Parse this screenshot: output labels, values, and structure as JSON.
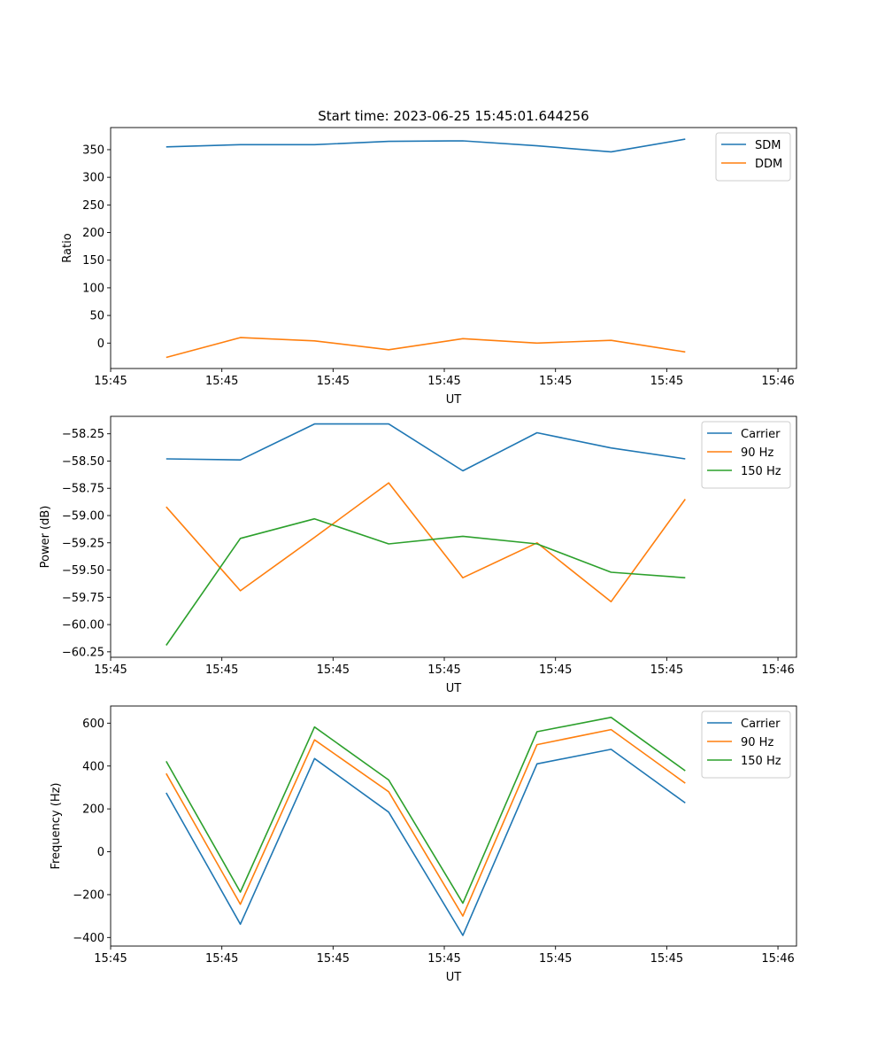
{
  "figure": {
    "title": "Start time: 2023-06-25 15:45:01.644256"
  },
  "chart_data": [
    {
      "type": "line",
      "title": "Start time: 2023-06-25 15:45:01.644256",
      "xlabel": "UT",
      "ylabel": "Ratio",
      "x": [
        0,
        1,
        2,
        3,
        4,
        5,
        6,
        7
      ],
      "xlim": [
        -0.75,
        8.5
      ],
      "x_ticks": [
        -0.75,
        0.75,
        2.25,
        3.75,
        5.25,
        6.75,
        8.25
      ],
      "x_tick_labels": [
        "15:45",
        "15:45",
        "15:45",
        "15:45",
        "15:45",
        "15:45",
        "15:46"
      ],
      "ylim": [
        -46,
        390
      ],
      "y_ticks": [
        0,
        50,
        100,
        150,
        200,
        250,
        300,
        350
      ],
      "y_tick_labels": [
        "0",
        "50",
        "100",
        "150",
        "200",
        "250",
        "300",
        "350"
      ],
      "grid": false,
      "legend": "upper right",
      "series": [
        {
          "name": "SDM",
          "color": "#1f77b4",
          "values": [
            355,
            359,
            359,
            365,
            366,
            357,
            346,
            369
          ]
        },
        {
          "name": "DDM",
          "color": "#ff7f0e",
          "values": [
            -26,
            10,
            4,
            -12,
            8,
            0,
            5,
            -16
          ]
        }
      ]
    },
    {
      "type": "line",
      "xlabel": "UT",
      "ylabel": "Power (dB)",
      "x": [
        0,
        1,
        2,
        3,
        4,
        5,
        6,
        7
      ],
      "xlim": [
        -0.75,
        8.5
      ],
      "x_ticks": [
        -0.75,
        0.75,
        2.25,
        3.75,
        5.25,
        6.75,
        8.25
      ],
      "x_tick_labels": [
        "15:45",
        "15:45",
        "15:45",
        "15:45",
        "15:45",
        "15:45",
        "15:46"
      ],
      "ylim": [
        -60.3,
        -58.09
      ],
      "y_ticks": [
        -60.25,
        -60.0,
        -59.75,
        -59.5,
        -59.25,
        -59.0,
        -58.75,
        -58.5,
        -58.25
      ],
      "y_tick_labels": [
        "−60.25",
        "−60.00",
        "−59.75",
        "−59.50",
        "−59.25",
        "−59.00",
        "−58.75",
        "−58.50",
        "−58.25"
      ],
      "grid": false,
      "legend": "upper right",
      "series": [
        {
          "name": "Carrier",
          "color": "#1f77b4",
          "values": [
            -58.48,
            -58.49,
            -58.16,
            -58.16,
            -58.59,
            -58.24,
            -58.38,
            -58.48
          ]
        },
        {
          "name": "90 Hz",
          "color": "#ff7f0e",
          "values": [
            -58.92,
            -59.69,
            -59.2,
            -58.7,
            -59.57,
            -59.25,
            -59.79,
            -58.85
          ]
        },
        {
          "name": "150 Hz",
          "color": "#2ca02c",
          "values": [
            -60.19,
            -59.21,
            -59.03,
            -59.26,
            -59.19,
            -59.26,
            -59.52,
            -59.57
          ]
        }
      ]
    },
    {
      "type": "line",
      "xlabel": "UT",
      "ylabel": "Frequency (Hz)",
      "x": [
        0,
        1,
        2,
        3,
        4,
        5,
        6,
        7
      ],
      "xlim": [
        -0.75,
        8.5
      ],
      "x_ticks": [
        -0.75,
        0.75,
        2.25,
        3.75,
        5.25,
        6.75,
        8.25
      ],
      "x_tick_labels": [
        "15:45",
        "15:45",
        "15:45",
        "15:45",
        "15:45",
        "15:45",
        "15:46"
      ],
      "ylim": [
        -440,
        680
      ],
      "y_ticks": [
        -400,
        -200,
        0,
        200,
        400,
        600
      ],
      "y_tick_labels": [
        "−400",
        "−200",
        "0",
        "200",
        "400",
        "600"
      ],
      "grid": false,
      "legend": "upper right",
      "series": [
        {
          "name": "Carrier",
          "color": "#1f77b4",
          "values": [
            275,
            -338,
            435,
            185,
            -390,
            410,
            478,
            228
          ]
        },
        {
          "name": "90 Hz",
          "color": "#ff7f0e",
          "values": [
            365,
            -245,
            522,
            280,
            -300,
            500,
            570,
            320
          ]
        },
        {
          "name": "150 Hz",
          "color": "#2ca02c",
          "values": [
            422,
            -188,
            582,
            335,
            -240,
            560,
            627,
            378
          ]
        }
      ]
    }
  ]
}
